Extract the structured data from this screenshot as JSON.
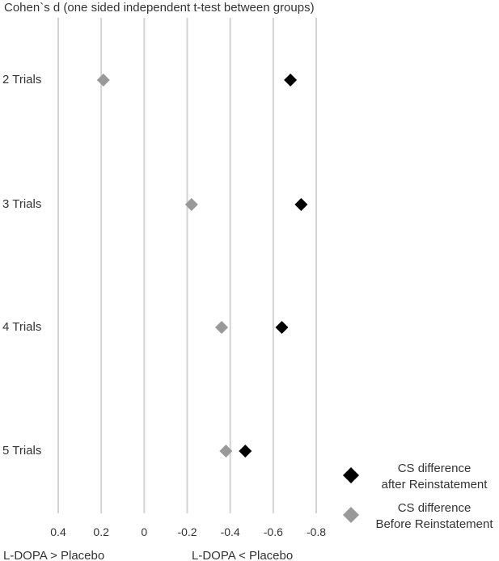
{
  "chart_data": {
    "type": "scatter",
    "title": "Cohen`s d (one sided independent t-test between groups)",
    "categories": [
      "2 Trials",
      "3 Trials",
      "4 Trials",
      "5 Trials"
    ],
    "x_ticks": [
      0.4,
      0.2,
      0,
      -0.2,
      -0.4,
      -0.6,
      -0.8
    ],
    "x_tick_labels": [
      "0.4",
      "0.2",
      "0",
      "-0.2",
      "-0.4",
      "-0.6",
      "-0.8"
    ],
    "xlim": [
      0.4,
      -0.8
    ],
    "x_reversed": true,
    "grid": true,
    "xlabel_left": "L-DOPA > Placebo",
    "xlabel_right": "L-DOPA < Placebo",
    "legend_position": "bottom-right",
    "series": [
      {
        "name": "CS difference after Reinstatement",
        "legend_lines": [
          "CS difference",
          "after Reinstatement"
        ],
        "color": "#000000",
        "marker": "diamond",
        "values": [
          -0.68,
          -0.73,
          -0.64,
          -0.47
        ]
      },
      {
        "name": "CS difference Before Reinstatement",
        "legend_lines": [
          "CS difference",
          "Before Reinstatement"
        ],
        "color": "#999999",
        "marker": "diamond",
        "values": [
          0.19,
          -0.22,
          -0.36,
          -0.38
        ]
      }
    ]
  }
}
